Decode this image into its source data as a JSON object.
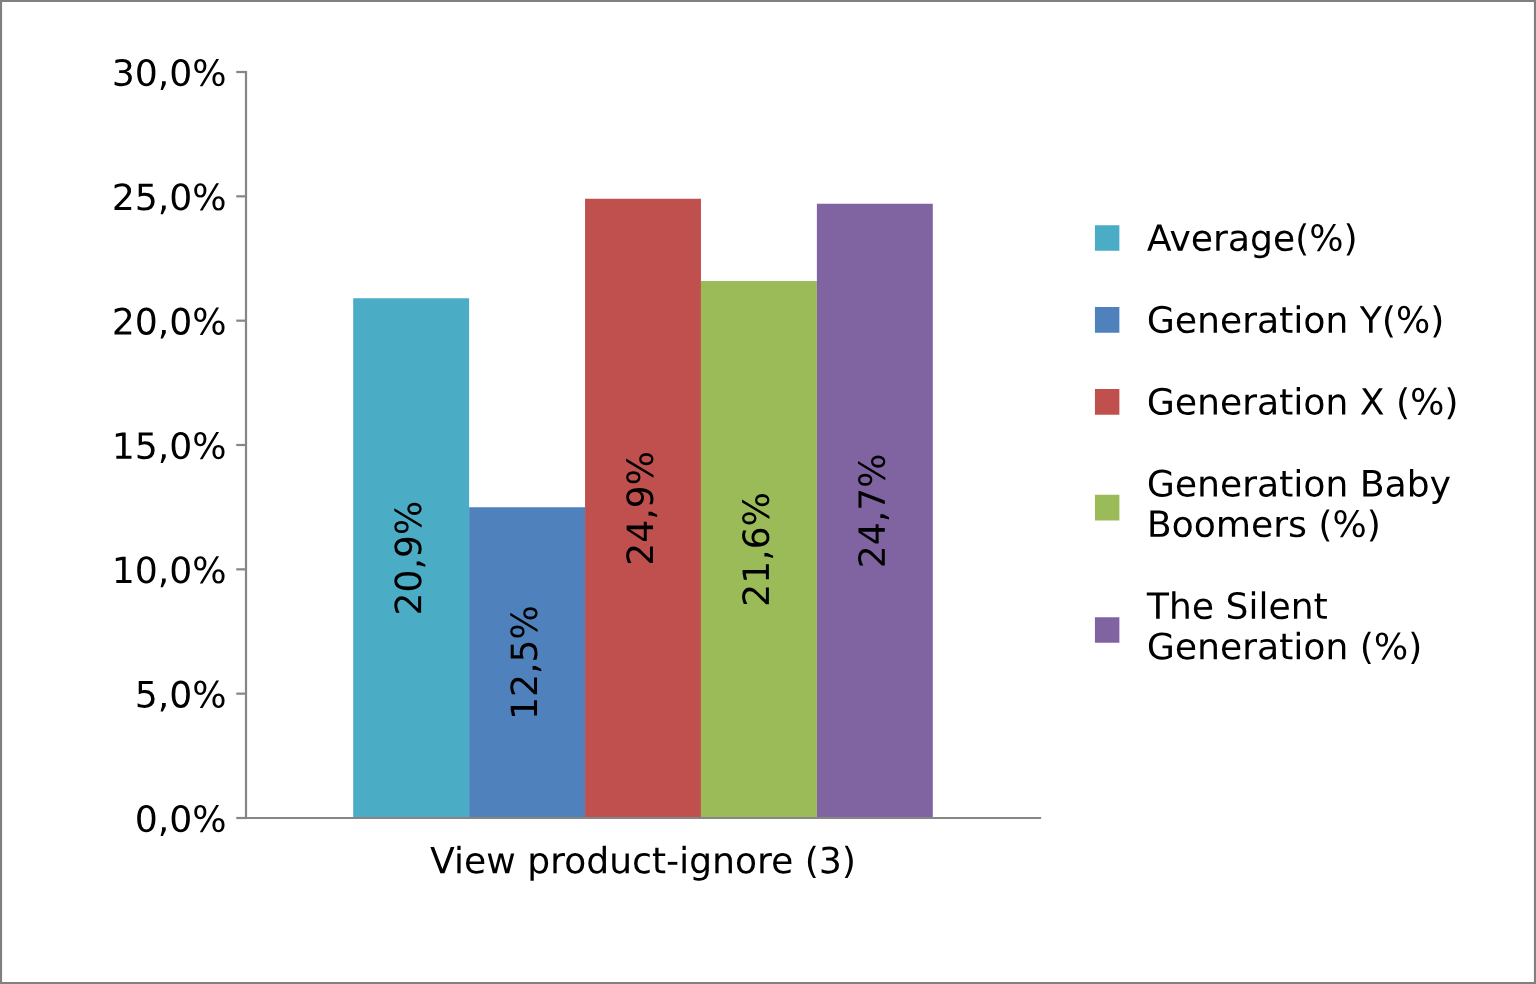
{
  "chart_data": {
    "type": "bar",
    "categories": [
      "View product-ignore (3)"
    ],
    "series": [
      {
        "name": "Average(%)",
        "color": "#4bacc6",
        "values": [
          20.9
        ],
        "value_labels": [
          "20,9%"
        ]
      },
      {
        "name": "Generation Y(%)",
        "color": "#4f81bd",
        "values": [
          12.5
        ],
        "value_labels": [
          "12,5%"
        ]
      },
      {
        "name": "Generation X (%)",
        "color": "#c0504d",
        "values": [
          24.9
        ],
        "value_labels": [
          "24,9%"
        ]
      },
      {
        "name": "Generation Baby Boomers (%)",
        "color": "#9bbb59",
        "values": [
          21.6
        ],
        "value_labels": [
          "21,6%"
        ]
      },
      {
        "name": "The Silent Generation (%)",
        "color": "#8064a2",
        "values": [
          24.7
        ],
        "value_labels": [
          "24,7%"
        ]
      }
    ],
    "ylim": [
      0,
      30
    ],
    "yticks": [
      {
        "value": 0,
        "label": "0,0%"
      },
      {
        "value": 5,
        "label": "5,0%"
      },
      {
        "value": 10,
        "label": "10,0%"
      },
      {
        "value": 15,
        "label": "15,0%"
      },
      {
        "value": 20,
        "label": "20,0%"
      },
      {
        "value": 25,
        "label": "25,0%"
      },
      {
        "value": 30,
        "label": "30,0%"
      }
    ],
    "grid": false,
    "legend": "right"
  }
}
